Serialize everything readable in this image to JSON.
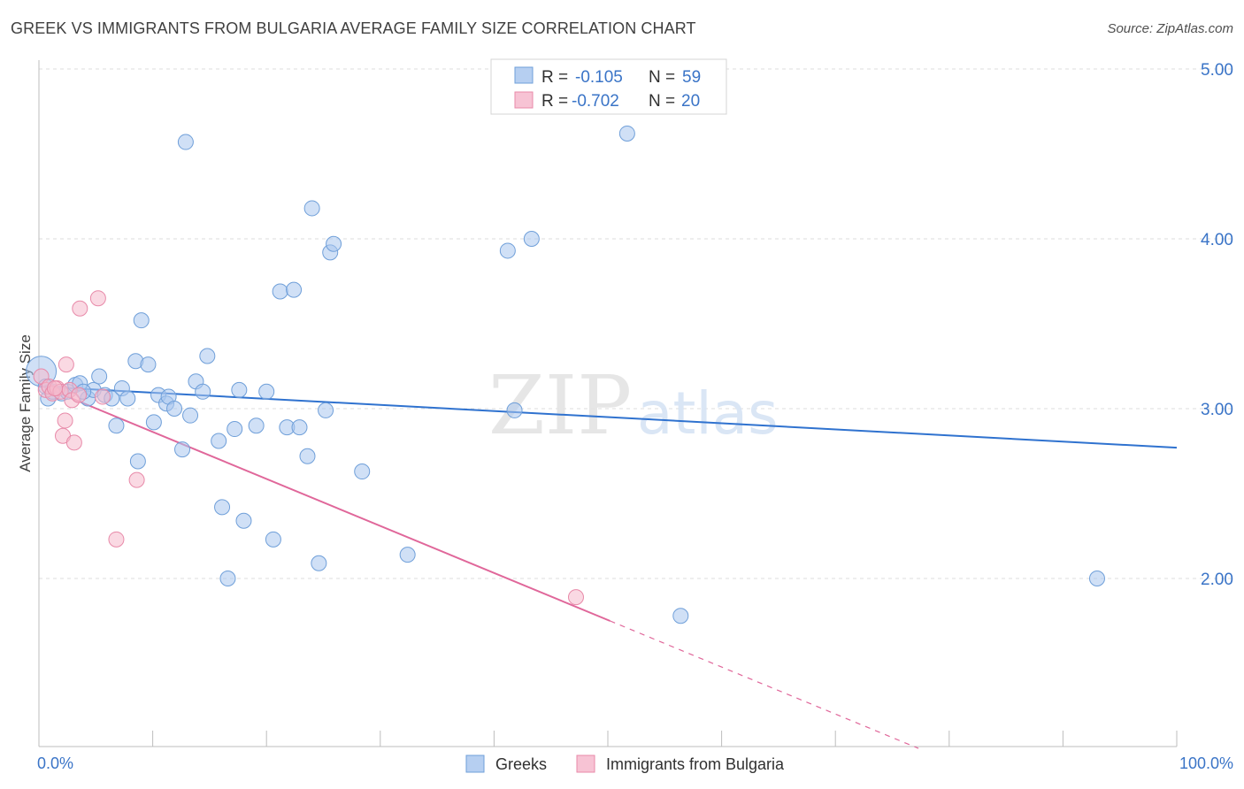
{
  "title": "GREEK VS IMMIGRANTS FROM BULGARIA AVERAGE FAMILY SIZE CORRELATION CHART",
  "source": "Source: ZipAtlas.com",
  "watermark": {
    "zip": "ZIP",
    "atlas": "atlas"
  },
  "colors": {
    "blue": "#3a74c7",
    "blue_fill": "#a9c7ee",
    "blue_line": "#2f72cf",
    "pink_fill": "#f6b9cc",
    "pink_line": "#e0679a",
    "grid": "#dcdcdc"
  },
  "legend": {
    "rows": [
      {
        "r_label": "R = ",
        "r_value": "-0.105",
        "n_label": "N = ",
        "n_value": "59"
      },
      {
        "r_label": "R = ",
        "r_value": "-0.702",
        "n_label": "N = ",
        "n_value": "20"
      }
    ]
  },
  "bottom_legend": [
    "Greeks",
    "Immigrants from Bulgaria"
  ],
  "chart_data": {
    "type": "scatter",
    "title": "GREEK VS IMMIGRANTS FROM BULGARIA AVERAGE FAMILY SIZE CORRELATION CHART",
    "xlabel": "",
    "ylabel": "Average Family Size",
    "xlim": [
      0,
      100
    ],
    "ylim": [
      1.0,
      5.1
    ],
    "x_tick_labels": [
      "0.0%",
      "100.0%"
    ],
    "y_ticks": [
      2.0,
      3.0,
      4.0,
      5.0
    ],
    "y_tick_labels": [
      "2.00",
      "3.00",
      "4.00",
      "5.00"
    ],
    "grid": "horizontal dashed",
    "legend_position": "top-center",
    "series": [
      {
        "name": "Greeks",
        "color": "#a9c7ee",
        "points": [
          [
            0.2,
            3.22
          ],
          [
            0.8,
            3.06
          ],
          [
            1.2,
            3.1
          ],
          [
            2.0,
            3.09
          ],
          [
            2.5,
            3.1
          ],
          [
            3.2,
            3.14
          ],
          [
            3.6,
            3.15
          ],
          [
            4.3,
            3.06
          ],
          [
            4.8,
            3.11
          ],
          [
            5.3,
            3.19
          ],
          [
            5.8,
            3.08
          ],
          [
            6.4,
            3.06
          ],
          [
            6.8,
            2.9
          ],
          [
            7.3,
            3.12
          ],
          [
            7.8,
            3.06
          ],
          [
            8.5,
            3.28
          ],
          [
            8.7,
            2.69
          ],
          [
            9.0,
            3.52
          ],
          [
            9.6,
            3.26
          ],
          [
            10.1,
            2.92
          ],
          [
            10.5,
            3.08
          ],
          [
            11.2,
            3.03
          ],
          [
            11.4,
            3.07
          ],
          [
            11.9,
            3.0
          ],
          [
            12.6,
            2.76
          ],
          [
            12.9,
            4.57
          ],
          [
            13.3,
            2.96
          ],
          [
            13.8,
            3.16
          ],
          [
            14.4,
            3.1
          ],
          [
            14.8,
            3.31
          ],
          [
            15.8,
            2.81
          ],
          [
            16.1,
            2.42
          ],
          [
            16.6,
            2.0
          ],
          [
            17.2,
            2.88
          ],
          [
            17.6,
            3.11
          ],
          [
            18.0,
            2.34
          ],
          [
            19.1,
            2.9
          ],
          [
            20.0,
            3.1
          ],
          [
            20.6,
            2.23
          ],
          [
            21.2,
            3.69
          ],
          [
            21.8,
            2.89
          ],
          [
            22.4,
            3.7
          ],
          [
            22.9,
            2.89
          ],
          [
            23.6,
            2.72
          ],
          [
            24.0,
            4.18
          ],
          [
            24.6,
            2.09
          ],
          [
            25.2,
            2.99
          ],
          [
            25.6,
            3.92
          ],
          [
            25.9,
            3.97
          ],
          [
            28.4,
            2.63
          ],
          [
            32.4,
            2.14
          ],
          [
            41.8,
            2.99
          ],
          [
            41.2,
            3.93
          ],
          [
            43.3,
            4.0
          ],
          [
            51.7,
            4.62
          ],
          [
            56.4,
            1.78
          ],
          [
            93.0,
            2.0
          ],
          [
            0.6,
            3.13
          ],
          [
            3.9,
            3.1
          ]
        ]
      },
      {
        "name": "Immigrants from Bulgaria",
        "color": "#f6b9cc",
        "points": [
          [
            0.2,
            3.19
          ],
          [
            0.6,
            3.11
          ],
          [
            0.9,
            3.13
          ],
          [
            1.2,
            3.09
          ],
          [
            1.6,
            3.12
          ],
          [
            1.9,
            3.1
          ],
          [
            2.1,
            2.84
          ],
          [
            2.3,
            2.93
          ],
          [
            2.4,
            3.26
          ],
          [
            2.7,
            3.11
          ],
          [
            2.9,
            3.05
          ],
          [
            3.1,
            2.8
          ],
          [
            3.5,
            3.08
          ],
          [
            3.6,
            3.59
          ],
          [
            5.2,
            3.65
          ],
          [
            5.6,
            3.07
          ],
          [
            6.8,
            2.23
          ],
          [
            8.6,
            2.58
          ],
          [
            47.2,
            1.89
          ],
          [
            1.4,
            3.12
          ]
        ]
      }
    ],
    "trendlines": [
      {
        "series": "Greeks",
        "x": [
          0,
          100
        ],
        "y": [
          3.13,
          2.77
        ]
      },
      {
        "series": "Immigrants from Bulgaria",
        "x": [
          0,
          50.2
        ],
        "y": [
          3.14,
          1.75
        ],
        "dashed_extension_to_x": 77.3
      }
    ]
  }
}
